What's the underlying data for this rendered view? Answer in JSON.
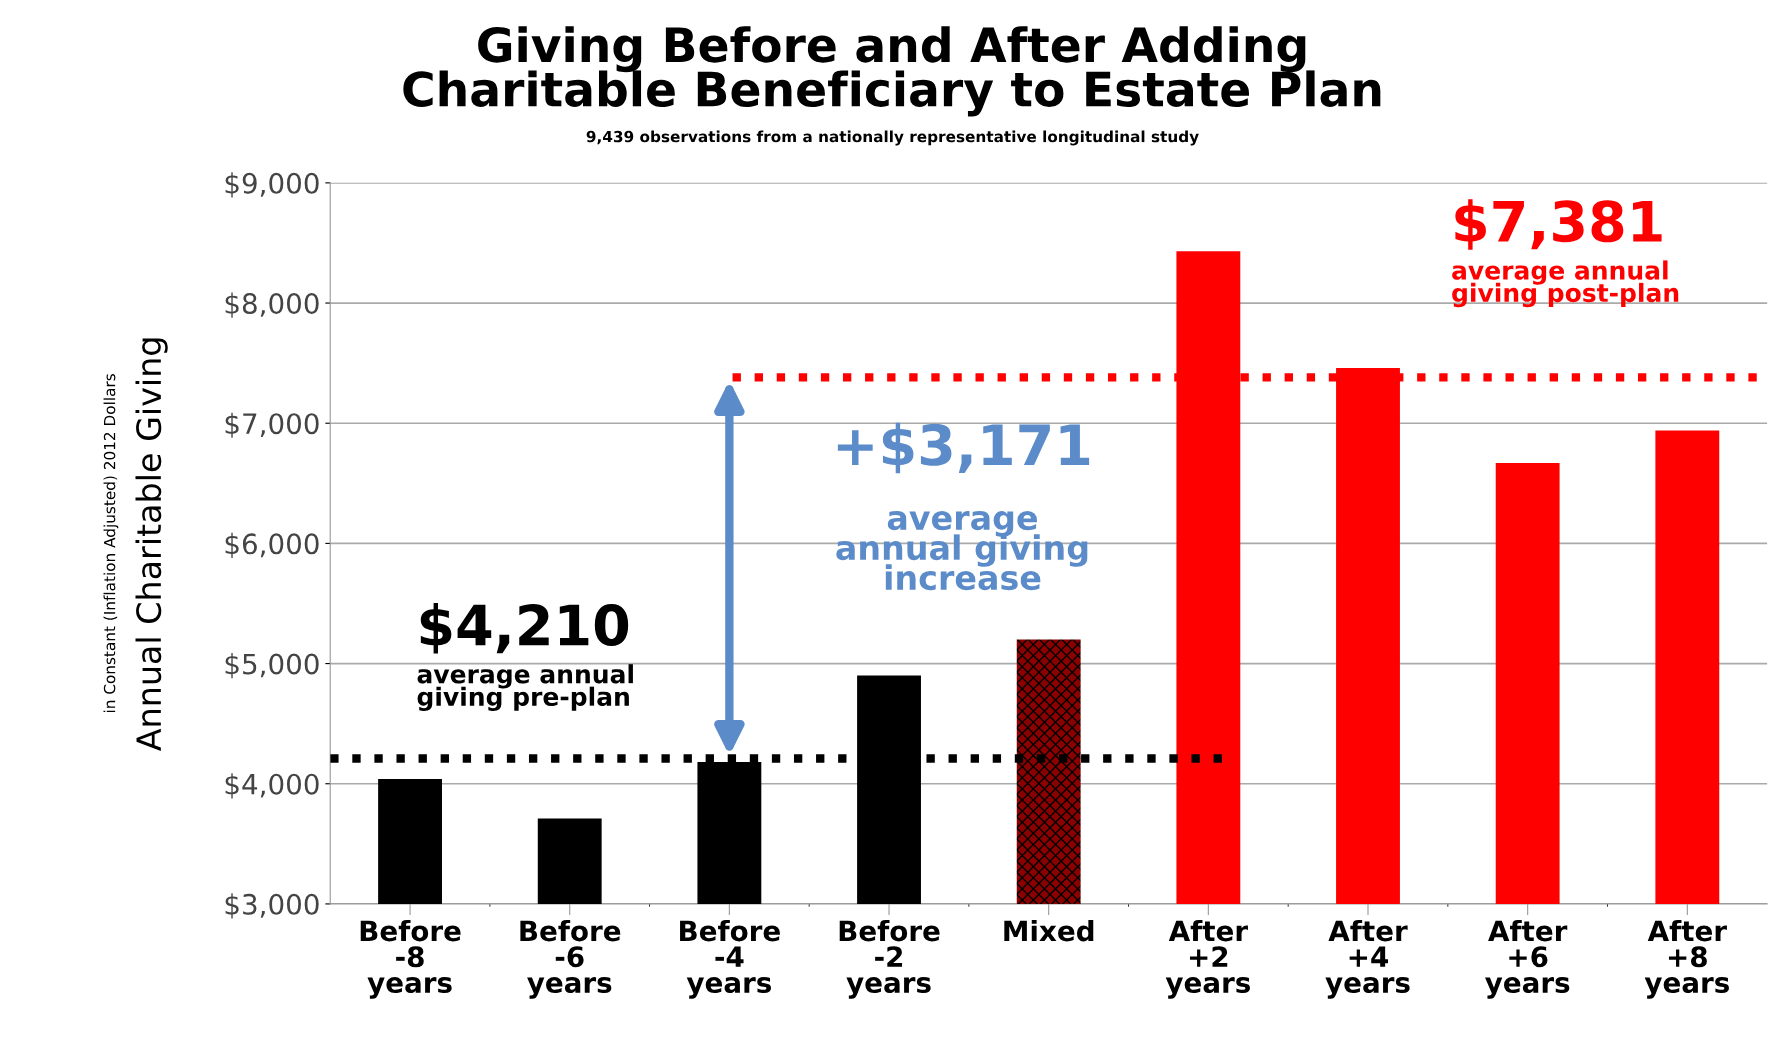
{
  "chart_data": {
    "type": "bar",
    "title": "Giving Before and After Adding\nCharitable Beneficiary to Estate Plan",
    "subtitle": "9,439 observations from a nationally representative longitudinal study",
    "ylabel": "Annual Charitable Giving",
    "categories": [
      "Before\n-8\nyears",
      "Before\n-6\nyears",
      "Before\n-4\nyears",
      "Before\n-2\nyears",
      "Mixed",
      "After\n+2\nyears",
      "After\n+4\nyears",
      "After\n+6\nyears",
      "After\n+8\nyears"
    ],
    "values": [
      4040,
      3710,
      4180,
      4900,
      5200,
      8430,
      7460,
      6670,
      6940
    ],
    "colors": [
      "#000000",
      "#000000",
      "#000000",
      "#000000",
      "#8b0000",
      "#ff0000",
      "#ff0000",
      "#ff0000",
      "#ff0000"
    ],
    "ylim": [
      3000,
      9000
    ],
    "yticks": [
      {
        "value": 3000,
        "label": "$3,000"
      },
      {
        "value": 4000,
        "label": "$4,000"
      },
      {
        "value": 5000,
        "label": "$5,000"
      },
      {
        "value": 6000,
        "label": "$6,000"
      },
      {
        "value": 7000,
        "label": "$7,000"
      },
      {
        "value": 8000,
        "label": "$8,000"
      },
      {
        "value": 9000,
        "label": "$9,000"
      }
    ],
    "grid": "y",
    "ref_lines": [
      {
        "axis": "y",
        "value": 4210,
        "label": "$4,210",
        "color": "#000000",
        "line_style": "dotted"
      },
      {
        "axis": "y",
        "value": 7381,
        "label": "$7,381",
        "color": "#ff0000",
        "line_style": "dotted"
      }
    ],
    "annotations": [
      "in Constant (Inflation Adjusted) 2012 Dollars",
      "average annual\ngiving pre-plan",
      "+$3,171",
      "average\nannual giving\nincrease",
      "average annual\ngiving post-plan"
    ]
  }
}
